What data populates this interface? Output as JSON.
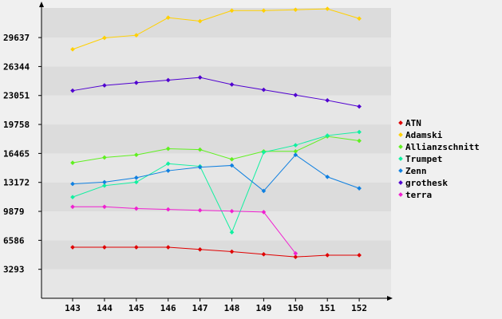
{
  "chart_data": {
    "type": "line",
    "title": "",
    "xlabel": "",
    "ylabel": "",
    "categories": [
      "143",
      "144",
      "145",
      "146",
      "147",
      "148",
      "149",
      "150",
      "151",
      "152"
    ],
    "ylim": [
      0,
      33000
    ],
    "yticks": [
      "3293",
      "6586",
      "9879",
      "13172",
      "16465",
      "19758",
      "23051",
      "26344",
      "29637"
    ],
    "grid": true,
    "legend_position": "right",
    "series": [
      {
        "name": "ATN",
        "color": "#e00000",
        "values": [
          5800,
          5800,
          5800,
          5800,
          5550,
          5300,
          5000,
          4700,
          4900,
          4900
        ]
      },
      {
        "name": "Adamski",
        "color": "#ffd000",
        "values": [
          28300,
          29600,
          29900,
          31900,
          31500,
          32700,
          32700,
          32800,
          32900,
          31800
        ]
      },
      {
        "name": "Allianzschnitt",
        "color": "#60f020",
        "values": [
          15400,
          16000,
          16300,
          17000,
          16900,
          15800,
          16700,
          16700,
          18400,
          17900
        ]
      },
      {
        "name": "Trumpet",
        "color": "#10f0a0",
        "values": [
          11500,
          12800,
          13200,
          15300,
          15000,
          7500,
          16600,
          17400,
          18500,
          18900
        ]
      },
      {
        "name": "Zenn",
        "color": "#1080e0",
        "values": [
          13000,
          13200,
          13700,
          14500,
          14900,
          15100,
          12200,
          16300,
          13800,
          12500
        ]
      },
      {
        "name": "grothesk",
        "color": "#5000d0",
        "values": [
          23600,
          24200,
          24500,
          24800,
          25100,
          24300,
          23700,
          23100,
          22500,
          21800
        ]
      },
      {
        "name": "terra",
        "color": "#f020d0",
        "values": [
          10400,
          10400,
          10200,
          10100,
          10000,
          9900,
          9800,
          5100,
          null,
          null
        ]
      }
    ]
  }
}
